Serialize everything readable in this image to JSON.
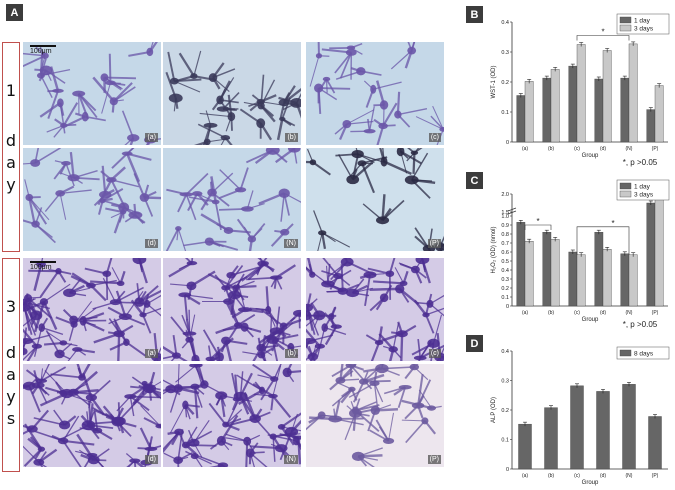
{
  "panels": {
    "A": "A",
    "B": "B",
    "C": "C",
    "D": "D"
  },
  "rows": {
    "day1_num": "1",
    "day1_word": [
      "d",
      "a",
      "y"
    ],
    "day3_num": "3",
    "day3_word": [
      "d",
      "a",
      "y",
      "s"
    ]
  },
  "scale_bar": "100μm",
  "images_day1": [
    "(a)",
    "(b)",
    "(c)",
    "(d)",
    "(N)",
    "(P)"
  ],
  "images_day3": [
    "(a)",
    "(b)",
    "(c)",
    "(d)",
    "(N)",
    "(P)"
  ],
  "colors": {
    "dark_bar": "#666666",
    "light_bar": "#c8c8c8",
    "stain_purple": "#5a3f9a",
    "background_blue": "#c5d8e8",
    "accent_red": "#c0504d"
  },
  "chart_data": [
    {
      "type": "bar",
      "panel": "B",
      "categories": [
        "(a)",
        "(b)",
        "(c)",
        "(d)",
        "(N)",
        "(P)"
      ],
      "series": [
        {
          "name": "1 day",
          "values": [
            0.155,
            0.213,
            0.253,
            0.21,
            0.213,
            0.108
          ]
        },
        {
          "name": "3 days",
          "values": [
            0.202,
            0.242,
            0.325,
            0.305,
            0.327,
            0.188
          ]
        }
      ],
      "xlabel": "Group",
      "ylabel": "WST-1 (OD)",
      "ylim": [
        0,
        0.4
      ],
      "yticks": [
        "0",
        "0.1",
        "0.2",
        "0.3",
        "0.4"
      ],
      "annotation": "*",
      "note": "*, p >0.05"
    },
    {
      "type": "bar",
      "panel": "C",
      "categories": [
        "(a)",
        "(b)",
        "(c)",
        "(d)",
        "(N)",
        "(P)"
      ],
      "series": [
        {
          "name": "1 day",
          "values": [
            0.93,
            0.82,
            0.6,
            0.82,
            0.58,
            1.75
          ]
        },
        {
          "name": "3 days",
          "values": [
            0.72,
            0.74,
            0.57,
            0.63,
            0.57,
            1.95
          ]
        }
      ],
      "xlabel": "Group",
      "ylabel": "H₂O₂ (OD) (nmol)",
      "ylim": [
        0,
        2.0
      ],
      "yticks": [
        "0",
        "0.1",
        "0.2",
        "0.3",
        "0.4",
        "0.5",
        "0.6",
        "0.7",
        "0.8",
        "0.9",
        "1.0",
        "1.5",
        "2.0"
      ],
      "annotation": "*",
      "note": "*, p >0.05"
    },
    {
      "type": "bar",
      "panel": "D",
      "categories": [
        "(a)",
        "(b)",
        "(c)",
        "(d)",
        "(N)",
        "(P)"
      ],
      "series": [
        {
          "name": "8 days",
          "values": [
            0.152,
            0.208,
            0.282,
            0.263,
            0.287,
            0.178
          ]
        }
      ],
      "xlabel": "Group",
      "ylabel": "ALP (OD)",
      "ylim": [
        0,
        0.4
      ],
      "yticks": [
        "0",
        "0.1",
        "0.2",
        "0.3",
        "0.4"
      ]
    }
  ]
}
